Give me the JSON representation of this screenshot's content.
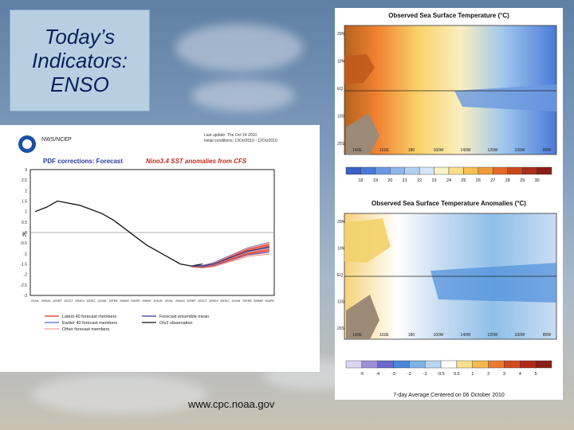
{
  "slide": {
    "title_lines": [
      "Today’s",
      "Indicators:",
      "ENSO"
    ],
    "source_url": "www.cpc.noaa.gov"
  },
  "forecast_chart": {
    "agency": "NWS/NCEP",
    "last_update_line1": "Last update: Thu Oct 14 2010",
    "last_update_line2": "Initial conditions: 13Oct2010 - 12Oct2010",
    "title_prefix": "PDF corrections: Forecast",
    "title_suffix": "Nino3.4 SST anomalies from CFS",
    "ylabel": "K",
    "legend": [
      {
        "label": "Latest 40 forecast members",
        "color": "#e8341c"
      },
      {
        "label": "Earlier 40 forecast members",
        "color": "#4a6ad8"
      },
      {
        "label": "Other forecast members",
        "color": "#f0a090"
      },
      {
        "label": "Forecast ensemble mean",
        "color": "#2a3a8a"
      },
      {
        "label": "OIv2 observation",
        "color": "#111111"
      }
    ]
  },
  "sst_map": {
    "title": "Observed Sea Surface Temperature (°C)",
    "lon_labels": [
      "140E",
      "160E",
      "180",
      "160W",
      "140W",
      "120W",
      "100W",
      "80W"
    ],
    "lat_labels": [
      "20N",
      "10N",
      "EQ",
      "10S",
      "20S"
    ],
    "colorbar_ticks": [
      "18",
      "19",
      "20",
      "21",
      "22",
      "23",
      "24",
      "25",
      "26",
      "27",
      "28",
      "29",
      "30"
    ]
  },
  "anomaly_map": {
    "title": "Observed Sea Surface Temperature Anomalies (°C)",
    "lon_labels": [
      "140E",
      "160E",
      "180",
      "160W",
      "140W",
      "120W",
      "100W",
      "80W"
    ],
    "lat_labels": [
      "20N",
      "10N",
      "EQ",
      "10S",
      "20S"
    ],
    "colorbar_ticks": [
      "-5",
      "-4",
      "-3",
      "-2",
      "-1",
      "-0.5",
      "0.5",
      "1",
      "2",
      "3",
      "4",
      "5"
    ],
    "footer": "7-day Average Centered on 06 October 2010"
  },
  "chart_data": {
    "type": "line",
    "title": "PDF corrections: Forecast Nino3.4 SST anomalies from CFS",
    "ylabel": "K",
    "xlabel": "",
    "x": [
      "20JUL",
      "20AUG",
      "20SEP",
      "20OCT",
      "20NOV",
      "20DEC",
      "20JAN",
      "20FEB",
      "20MAR",
      "20APR",
      "20MAY",
      "20JUN",
      "20JUL",
      "20AUG",
      "20SEP",
      "20OCT",
      "20NOV",
      "20DEC",
      "20JAN",
      "20FEB",
      "20MAR",
      "20APR"
    ],
    "ylim": [
      -3,
      3
    ],
    "yticks": [
      3,
      2.5,
      2,
      1.5,
      1,
      0.5,
      0,
      -0.5,
      -1,
      -1.5,
      -2,
      -2.5,
      -3
    ],
    "series": [
      {
        "name": "OIv2 observation",
        "values": [
          1.0,
          1.2,
          1.5,
          1.4,
          1.3,
          1.1,
          0.9,
          0.6,
          0.2,
          -0.2,
          -0.6,
          -0.9,
          -1.2,
          -1.5,
          -1.6,
          -1.5,
          null,
          null,
          null,
          null,
          null,
          null
        ]
      },
      {
        "name": "Forecast ensemble mean",
        "values": [
          null,
          null,
          null,
          null,
          null,
          null,
          null,
          null,
          null,
          null,
          null,
          null,
          null,
          null,
          -1.6,
          -1.6,
          -1.5,
          -1.3,
          -1.1,
          -0.9,
          -0.8,
          -0.7
        ]
      }
    ],
    "grid": false
  }
}
